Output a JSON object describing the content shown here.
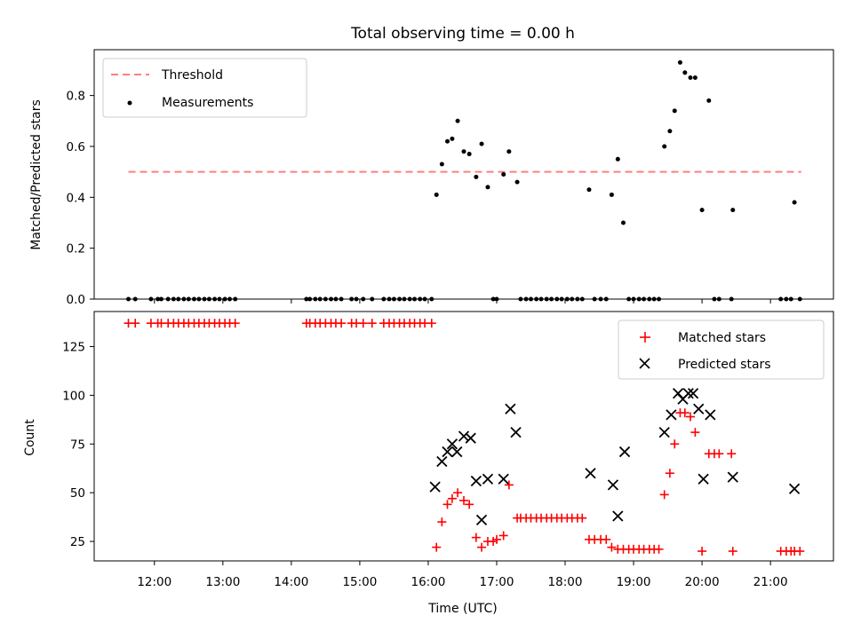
{
  "chart_data": [
    {
      "type": "scatter",
      "title": "Total observing time = 0.00 h",
      "xlabel": "",
      "ylabel": "Matched/Predicted stars",
      "ylim": [
        0,
        0.98
      ],
      "yticks": [
        "0.0",
        "0.2",
        "0.4",
        "0.6",
        "0.8"
      ],
      "grid": false,
      "legend_position": "top-left",
      "threshold": {
        "name": "Threshold",
        "value": 0.5,
        "x_range": [
          11.62,
          21.45
        ],
        "color": "#ff7f7f",
        "style": "dashed"
      },
      "series": [
        {
          "name": "Measurements",
          "color": "#000000",
          "x": [
            11.62,
            11.72,
            11.95,
            12.05,
            12.1,
            12.2,
            12.28,
            12.35,
            12.43,
            12.5,
            12.58,
            12.65,
            12.73,
            12.8,
            12.88,
            12.95,
            13.03,
            13.1,
            13.18,
            14.22,
            14.27,
            14.35,
            14.42,
            14.5,
            14.58,
            14.65,
            14.73,
            14.88,
            14.95,
            15.05,
            15.18,
            15.35,
            15.43,
            15.5,
            15.58,
            15.65,
            15.73,
            15.8,
            15.88,
            15.95,
            16.05,
            16.12,
            16.2,
            16.28,
            16.35,
            16.43,
            16.52,
            16.6,
            16.7,
            16.78,
            16.87,
            16.95,
            17.0,
            17.1,
            17.18,
            17.3,
            17.35,
            17.43,
            17.5,
            17.58,
            17.65,
            17.73,
            17.8,
            17.88,
            17.95,
            18.03,
            18.1,
            18.18,
            18.25,
            18.35,
            18.43,
            18.52,
            18.6,
            18.68,
            18.77,
            18.85,
            18.93,
            19.0,
            19.08,
            19.15,
            19.23,
            19.3,
            19.37,
            19.45,
            19.53,
            19.6,
            19.68,
            19.75,
            19.83,
            19.9,
            20.0,
            20.1,
            20.18,
            20.25,
            20.43,
            20.45,
            21.15,
            21.23,
            21.3,
            21.35,
            21.43
          ],
          "y": [
            0,
            0,
            0,
            0,
            0,
            0,
            0,
            0,
            0,
            0,
            0,
            0,
            0,
            0,
            0,
            0,
            0,
            0,
            0,
            0,
            0,
            0,
            0,
            0,
            0,
            0,
            0,
            0,
            0,
            0,
            0,
            0,
            0,
            0,
            0,
            0,
            0,
            0,
            0,
            0,
            0,
            0.41,
            0.53,
            0.62,
            0.63,
            0.7,
            0.58,
            0.57,
            0.48,
            0.61,
            0.44,
            0,
            0,
            0.49,
            0.58,
            0.46,
            0,
            0,
            0,
            0,
            0,
            0,
            0,
            0,
            0,
            0,
            0,
            0,
            0,
            0.43,
            0,
            0,
            0,
            0.41,
            0.55,
            0.3,
            0,
            0,
            0,
            0,
            0,
            0,
            0,
            0.6,
            0.66,
            0.74,
            0.93,
            0.89,
            0.87,
            0.87,
            0.35,
            0.78,
            0,
            0,
            0,
            0.35,
            0,
            0,
            0,
            0.38,
            0
          ]
        }
      ]
    },
    {
      "type": "scatter",
      "title": "",
      "xlabel": "Time (UTC)",
      "ylabel": "Count",
      "xlim": [
        11.12,
        21.92
      ],
      "xticks": [
        "12:00",
        "13:00",
        "14:00",
        "15:00",
        "16:00",
        "17:00",
        "18:00",
        "19:00",
        "20:00",
        "21:00"
      ],
      "xtick_values": [
        12,
        13,
        14,
        15,
        16,
        17,
        18,
        19,
        20,
        21
      ],
      "ylim": [
        15,
        143
      ],
      "yticks": [
        "25",
        "50",
        "75",
        "100",
        "125"
      ],
      "ytick_values": [
        25,
        50,
        75,
        100,
        125
      ],
      "grid": false,
      "legend_position": "top-right",
      "series": [
        {
          "name": "Matched stars",
          "color": "#ff0000",
          "marker": "plus",
          "x": [
            11.62,
            11.72,
            11.95,
            12.05,
            12.1,
            12.2,
            12.28,
            12.35,
            12.43,
            12.5,
            12.58,
            12.65,
            12.73,
            12.8,
            12.88,
            12.95,
            13.03,
            13.1,
            13.18,
            14.22,
            14.27,
            14.35,
            14.42,
            14.5,
            14.58,
            14.65,
            14.73,
            14.88,
            14.95,
            15.05,
            15.18,
            15.35,
            15.43,
            15.5,
            15.58,
            15.65,
            15.73,
            15.8,
            15.88,
            15.95,
            16.05,
            16.12,
            16.2,
            16.28,
            16.35,
            16.43,
            16.52,
            16.6,
            16.7,
            16.78,
            16.87,
            16.95,
            17.0,
            17.1,
            17.18,
            17.3,
            17.35,
            17.43,
            17.5,
            17.58,
            17.65,
            17.73,
            17.8,
            17.88,
            17.95,
            18.03,
            18.1,
            18.18,
            18.25,
            18.35,
            18.43,
            18.52,
            18.6,
            18.68,
            18.77,
            18.85,
            18.93,
            19.0,
            19.08,
            19.15,
            19.23,
            19.3,
            19.37,
            19.45,
            19.53,
            19.6,
            19.68,
            19.75,
            19.83,
            19.9,
            20.0,
            20.1,
            20.18,
            20.25,
            20.43,
            20.45,
            21.15,
            21.23,
            21.3,
            21.35,
            21.43
          ],
          "y": [
            137,
            137,
            137,
            137,
            137,
            137,
            137,
            137,
            137,
            137,
            137,
            137,
            137,
            137,
            137,
            137,
            137,
            137,
            137,
            137,
            137,
            137,
            137,
            137,
            137,
            137,
            137,
            137,
            137,
            137,
            137,
            137,
            137,
            137,
            137,
            137,
            137,
            137,
            137,
            137,
            137,
            22,
            35,
            44,
            47,
            50,
            46,
            44,
            27,
            22,
            25,
            25,
            26,
            28,
            54,
            37,
            37,
            37,
            37,
            37,
            37,
            37,
            37,
            37,
            37,
            37,
            37,
            37,
            37,
            26,
            26,
            26,
            26,
            22,
            21,
            21,
            21,
            21,
            21,
            21,
            21,
            21,
            21,
            49,
            60,
            75,
            91,
            91,
            89,
            81,
            20,
            70,
            70,
            70,
            70,
            20,
            20,
            20,
            20,
            20,
            20
          ]
        },
        {
          "name": "Predicted stars",
          "color": "#000000",
          "marker": "x",
          "x": [
            16.1,
            16.2,
            16.28,
            16.35,
            16.42,
            16.52,
            16.62,
            16.7,
            16.78,
            16.87,
            17.1,
            17.2,
            17.28,
            18.37,
            18.7,
            18.77,
            18.87,
            19.45,
            19.55,
            19.65,
            19.72,
            19.8,
            19.87,
            19.95,
            20.02,
            20.12,
            20.45,
            21.35
          ],
          "y": [
            53,
            66,
            71,
            75,
            71,
            79,
            78,
            56,
            36,
            57,
            57,
            93,
            81,
            60,
            54,
            38,
            71,
            81,
            90,
            101,
            98,
            101,
            101,
            93,
            57,
            90,
            58,
            52
          ]
        }
      ]
    }
  ]
}
